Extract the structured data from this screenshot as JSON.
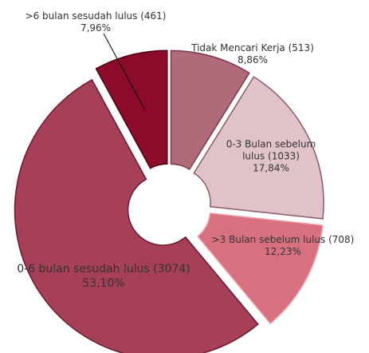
{
  "chart_data": {
    "type": "pie",
    "categories": [
      "Tidak Mencari Kerja (513)",
      "0-3 Bulan sebelum lulus (1033)",
      ">3 Bulan sebelum lulus (708)",
      "0-6 bulan sesudah lulus (3074)",
      ">6 bulan sesudah lulus (461)"
    ],
    "values": [
      8.86,
      17.84,
      12.23,
      53.1,
      7.96
    ],
    "value_labels": [
      "8,86%",
      "17,84%",
      "12,23%",
      "53,10%",
      "7,96%"
    ],
    "colors": [
      "#b06b7b",
      "#e0c2c9",
      "#d8717f",
      "#a63f58",
      "#8c0b2b"
    ],
    "donut": true
  }
}
